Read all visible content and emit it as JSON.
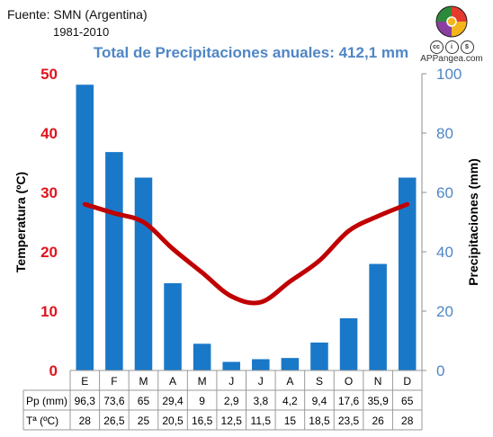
{
  "source": {
    "line1": "Fuente: SMN (Argentina)",
    "line2": "1981-2010"
  },
  "brand": {
    "site": "APPangea.com",
    "cc_icons": [
      "cc-icon",
      "by-icon",
      "nc-icon"
    ]
  },
  "chart_data": {
    "type": "bar+line",
    "title": "Total de Precipitaciones anuales: 412,1 mm",
    "categories": [
      "E",
      "F",
      "M",
      "A",
      "M",
      "J",
      "J",
      "A",
      "S",
      "O",
      "N",
      "D"
    ],
    "series": [
      {
        "name": "Pp (mm)",
        "kind": "bar",
        "axis": "right",
        "color": "#1a78c8",
        "values": [
          96.3,
          73.6,
          65,
          29.4,
          9,
          2.9,
          3.8,
          4.2,
          9.4,
          17.6,
          35.9,
          65
        ]
      },
      {
        "name": "Tª (ºC)",
        "kind": "line",
        "axis": "left",
        "color": "#c00000",
        "values": [
          28,
          26.5,
          25,
          20.5,
          16.5,
          12.5,
          11.5,
          15,
          18.5,
          23.5,
          26,
          28
        ]
      }
    ],
    "y_left": {
      "label": "Temperatura (ºC)",
      "min": 0,
      "max": 50,
      "ticks": [
        0,
        10,
        20,
        30,
        40,
        50
      ],
      "color": "#e0141e"
    },
    "y_right": {
      "label": "Precipitaciones (mm)",
      "min": 0,
      "max": 100,
      "ticks": [
        0,
        20,
        40,
        60,
        80,
        100
      ],
      "color": "#4f86c6"
    },
    "table": {
      "rows": [
        {
          "label": "Pp (mm)",
          "cells": [
            "96,3",
            "73,6",
            "65",
            "29,4",
            "9",
            "2,9",
            "3,8",
            "4,2",
            "9,4",
            "17,6",
            "35,9",
            "65"
          ]
        },
        {
          "label": "Tª (ºC)",
          "cells": [
            "28",
            "26,5",
            "25",
            "20,5",
            "16,5",
            "12,5",
            "11,5",
            "15",
            "18,5",
            "23,5",
            "26",
            "28"
          ]
        }
      ]
    }
  }
}
